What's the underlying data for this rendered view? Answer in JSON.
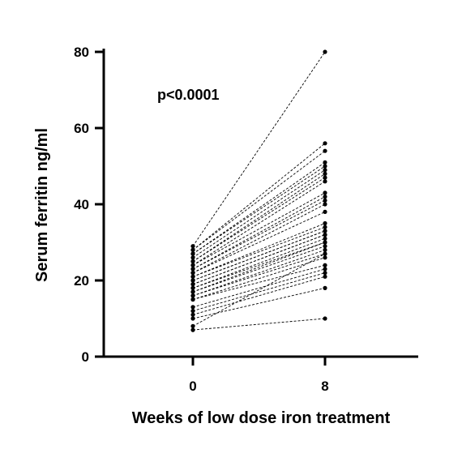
{
  "chart_data": {
    "type": "scatter",
    "subtype": "paired before-after",
    "xlabel": "Weeks of low dose iron treatment",
    "ylabel": "Serum ferritin ng/ml",
    "x": [
      "0",
      "8"
    ],
    "xticks": [
      "0",
      "8"
    ],
    "ylim": [
      0,
      80
    ],
    "yticks": [
      0,
      20,
      40,
      60,
      80
    ],
    "grid": false,
    "annotation": "p<0.0001",
    "pairs": [
      [
        29,
        80
      ],
      [
        28,
        56
      ],
      [
        28,
        54
      ],
      [
        27,
        51
      ],
      [
        27,
        50
      ],
      [
        26,
        49
      ],
      [
        25,
        48
      ],
      [
        25,
        47
      ],
      [
        24,
        46
      ],
      [
        24,
        43
      ],
      [
        23,
        42
      ],
      [
        23,
        41
      ],
      [
        22,
        40
      ],
      [
        22,
        38
      ],
      [
        21,
        35
      ],
      [
        21,
        34
      ],
      [
        20,
        33
      ],
      [
        20,
        33
      ],
      [
        19,
        32
      ],
      [
        19,
        32
      ],
      [
        18,
        31
      ],
      [
        18,
        30
      ],
      [
        17,
        30
      ],
      [
        17,
        29
      ],
      [
        16,
        28
      ],
      [
        16,
        27
      ],
      [
        15,
        26
      ],
      [
        15,
        24
      ],
      [
        13,
        23
      ],
      [
        12,
        22
      ],
      [
        11,
        21
      ],
      [
        10,
        18
      ],
      [
        8,
        27
      ],
      [
        7,
        10
      ]
    ]
  }
}
